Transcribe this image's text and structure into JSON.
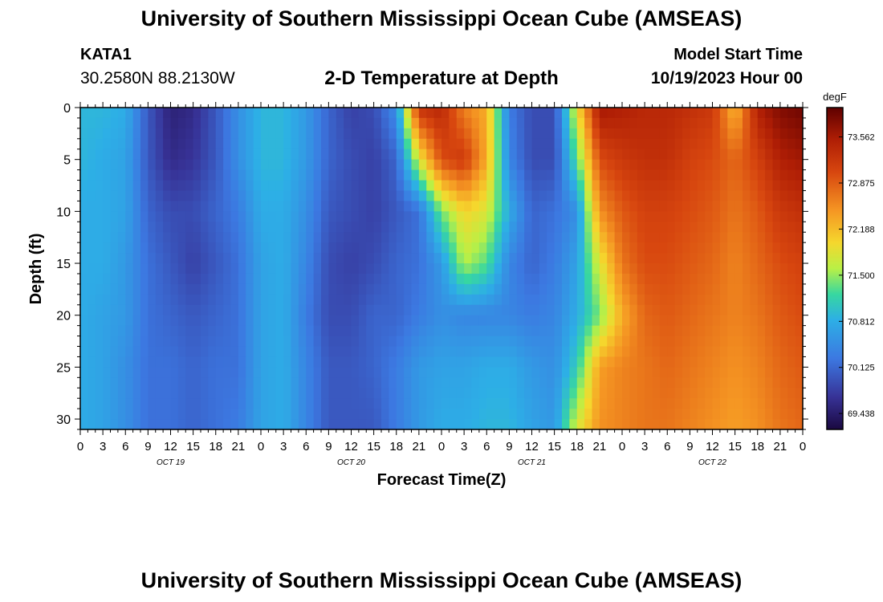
{
  "header": {
    "title": "University of Southern Mississippi Ocean Cube (AMSEAS)",
    "station_id": "KATA1",
    "coordinates": "30.2580N  88.2130W",
    "subtitle": "2-D Temperature at Depth",
    "model_start_label": "Model Start Time",
    "model_start_value": "10/19/2023 Hour 00"
  },
  "footer": {
    "title": "University of Southern Mississippi Ocean Cube (AMSEAS)"
  },
  "chart_data": {
    "type": "heatmap",
    "title": "2-D Temperature at Depth",
    "xlabel": "Forecast Time(Z)",
    "ylabel": "Depth (ft)",
    "x_tick_labels": [
      "0",
      "3",
      "6",
      "9",
      "12",
      "15",
      "18",
      "21",
      "0",
      "3",
      "6",
      "9",
      "12",
      "15",
      "18",
      "21",
      "0",
      "3",
      "6",
      "9",
      "12",
      "15",
      "18",
      "21",
      "0",
      "3",
      "6",
      "9",
      "12",
      "15",
      "18",
      "21",
      "0"
    ],
    "x_day_labels": [
      "OCT 19",
      "OCT 20",
      "OCT 21",
      "OCT 22"
    ],
    "x_range_hours": [
      0,
      96
    ],
    "y_ticks": [
      0,
      5,
      10,
      15,
      20,
      25,
      30
    ],
    "y_range": [
      0,
      31
    ],
    "y_inverted": true,
    "colorbar": {
      "unit": "degF",
      "tick_values": [
        73.562,
        72.875,
        72.188,
        71.5,
        70.812,
        70.125,
        69.438
      ],
      "tick_labels": [
        "73.562",
        "72.875",
        "72.188",
        "71.500",
        "70.812",
        "70.125",
        "69.438"
      ],
      "range": [
        69.2,
        74.0
      ]
    },
    "depths_ft": [
      0,
      5,
      10,
      15,
      20,
      25,
      31
    ],
    "hours": [
      0,
      3,
      6,
      9,
      12,
      15,
      18,
      21,
      24,
      27,
      30,
      33,
      36,
      39,
      42,
      45,
      48,
      51,
      54,
      57,
      60,
      63,
      66,
      69,
      72,
      75,
      78,
      81,
      84,
      87,
      90,
      93,
      96
    ],
    "values": [
      [
        70.9,
        70.9,
        70.8,
        70.0,
        69.5,
        69.6,
        70.0,
        70.5,
        70.9,
        70.9,
        70.6,
        70.1,
        69.8,
        69.9,
        70.5,
        73.3,
        73.4,
        72.6,
        72.3,
        70.3,
        69.9,
        69.9,
        71.9,
        73.6,
        73.5,
        73.4,
        73.4,
        73.3,
        73.2,
        72.2,
        73.5,
        73.8,
        73.9
      ],
      [
        70.9,
        70.8,
        70.7,
        70.0,
        69.6,
        69.7,
        70.0,
        70.5,
        70.9,
        70.9,
        70.6,
        70.1,
        69.9,
        69.8,
        70.1,
        71.8,
        73.0,
        73.2,
        72.3,
        70.4,
        69.9,
        69.9,
        71.3,
        73.0,
        73.2,
        73.3,
        73.3,
        73.1,
        73.0,
        72.8,
        73.1,
        73.5,
        73.6
      ],
      [
        70.8,
        70.8,
        70.7,
        70.1,
        69.9,
        69.9,
        70.1,
        70.3,
        70.8,
        70.8,
        70.5,
        70.0,
        69.9,
        69.8,
        70.0,
        70.2,
        71.4,
        72.0,
        71.8,
        70.8,
        70.1,
        70.2,
        70.5,
        72.5,
        72.9,
        73.1,
        73.1,
        73.0,
        72.9,
        72.7,
        72.9,
        73.2,
        73.3
      ],
      [
        70.8,
        70.8,
        70.6,
        70.2,
        70.0,
        69.8,
        70.0,
        70.2,
        70.7,
        70.8,
        70.4,
        69.9,
        69.8,
        69.9,
        70.1,
        70.2,
        70.6,
        71.6,
        71.3,
        70.4,
        70.1,
        70.3,
        70.7,
        71.8,
        72.7,
        73.0,
        73.0,
        72.9,
        72.8,
        72.6,
        72.8,
        73.0,
        73.1
      ],
      [
        70.8,
        70.7,
        70.6,
        70.2,
        70.1,
        70.0,
        70.1,
        70.2,
        70.7,
        70.8,
        70.3,
        69.9,
        69.9,
        70.1,
        70.1,
        70.3,
        70.5,
        70.4,
        70.4,
        70.4,
        70.3,
        70.4,
        70.8,
        71.4,
        72.3,
        72.8,
        72.9,
        72.8,
        72.7,
        72.6,
        72.7,
        72.9,
        73.0
      ],
      [
        70.8,
        70.7,
        70.5,
        70.2,
        70.2,
        70.1,
        70.2,
        70.2,
        70.7,
        70.8,
        70.4,
        70.0,
        70.0,
        70.1,
        70.3,
        70.6,
        70.7,
        70.7,
        70.8,
        70.8,
        70.6,
        70.5,
        71.1,
        72.4,
        72.6,
        72.7,
        72.8,
        72.7,
        72.6,
        72.5,
        72.6,
        72.8,
        72.9
      ],
      [
        70.8,
        70.7,
        70.5,
        70.2,
        70.2,
        70.1,
        70.2,
        70.3,
        70.7,
        70.8,
        70.4,
        70.0,
        70.0,
        70.0,
        70.3,
        70.6,
        70.8,
        70.8,
        70.9,
        70.9,
        70.7,
        70.6,
        71.8,
        72.5,
        72.6,
        72.7,
        72.7,
        72.6,
        72.5,
        72.4,
        72.5,
        72.7,
        72.8
      ]
    ]
  }
}
